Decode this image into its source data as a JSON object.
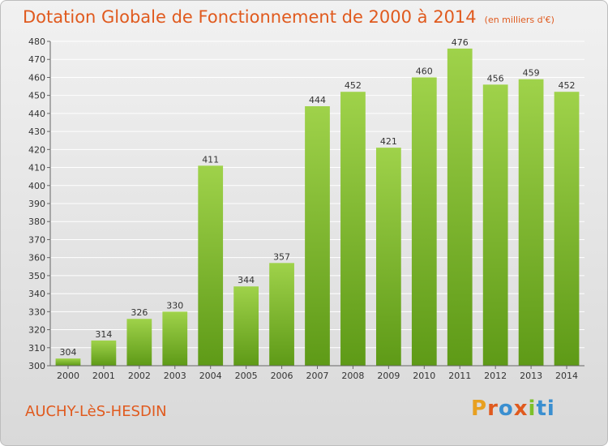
{
  "header": {
    "title": "Dotation Globale de Fonctionnement de 2000 à 2014",
    "unit": "(en milliers d'€)"
  },
  "footer": {
    "place": "AUCHY-LèS-HESDIN",
    "brand_letters": [
      "P",
      "r",
      "o",
      "x",
      "i",
      "ti"
    ]
  },
  "colors": {
    "bar_light": "#9fd24a",
    "bar_dark": "#5e9a17",
    "title": "#e05a1e",
    "grid": "#ffffff"
  },
  "chart_data": {
    "type": "bar",
    "title": "Dotation Globale de Fonctionnement de 2000 à 2014",
    "xlabel": "",
    "ylabel": "",
    "categories": [
      "2000",
      "2001",
      "2002",
      "2003",
      "2004",
      "2005",
      "2006",
      "2007",
      "2008",
      "2009",
      "2010",
      "2011",
      "2012",
      "2013",
      "2014"
    ],
    "values": [
      304,
      314,
      326,
      330,
      411,
      344,
      357,
      444,
      452,
      421,
      460,
      476,
      456,
      459,
      452
    ],
    "ylim": [
      300,
      480
    ],
    "yticks": [
      300,
      310,
      320,
      330,
      340,
      350,
      360,
      370,
      380,
      390,
      400,
      410,
      420,
      430,
      440,
      450,
      460,
      470,
      480
    ],
    "grid": true
  }
}
